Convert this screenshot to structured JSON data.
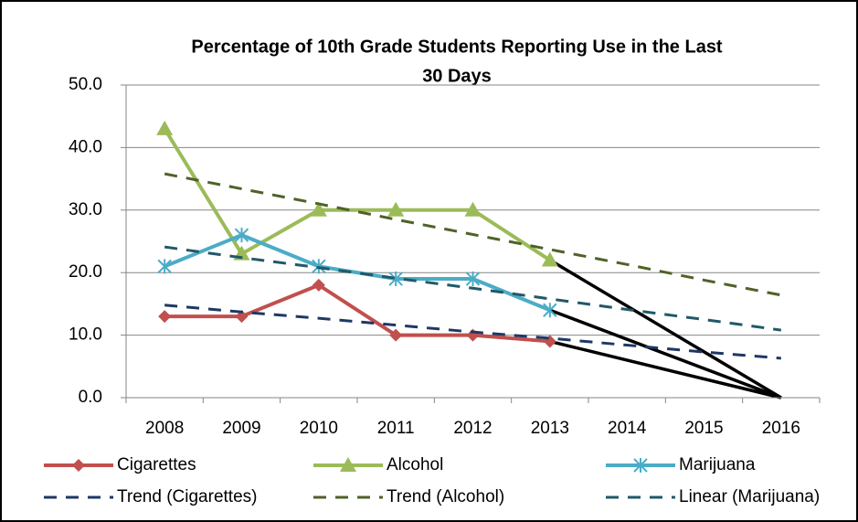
{
  "chart_data": {
    "type": "line",
    "title": [
      "Percentage of 10th Grade Students Reporting Use in the Last",
      "30 Days"
    ],
    "categories": [
      "2008",
      "2009",
      "2010",
      "2011",
      "2012",
      "2013",
      "2014",
      "2015",
      "2016"
    ],
    "ylim": [
      0,
      50
    ],
    "yticks": [
      {
        "value": 0,
        "label": "0.0"
      },
      {
        "value": 10,
        "label": "10.0"
      },
      {
        "value": 20,
        "label": "20.0"
      },
      {
        "value": 30,
        "label": "30.0"
      },
      {
        "value": 40,
        "label": "40.0"
      },
      {
        "value": 50,
        "label": "50.0"
      }
    ],
    "grid": true,
    "legend": "bottom",
    "series": [
      {
        "name": "Cigarettes",
        "color": "#c0504d",
        "marker": "diamond",
        "values": [
          13,
          13,
          18,
          10,
          10,
          9,
          null,
          null,
          null
        ],
        "extension_color": "#000000",
        "extension_values": [
          null,
          null,
          null,
          null,
          null,
          null,
          null,
          null,
          0
        ]
      },
      {
        "name": "Alcohol",
        "color": "#9bbb59",
        "marker": "triangle",
        "values": [
          43,
          23,
          30,
          30,
          30,
          22,
          null,
          null,
          null
        ],
        "extension_color": "#000000",
        "extension_values": [
          null,
          null,
          null,
          null,
          null,
          null,
          null,
          null,
          0
        ]
      },
      {
        "name": "Marijuana",
        "color": "#4bacc6",
        "marker": "star",
        "values": [
          21,
          26,
          21,
          19,
          19,
          14,
          null,
          null,
          null
        ],
        "extension_color": "#000000",
        "extension_values": [
          null,
          null,
          null,
          null,
          null,
          null,
          null,
          null,
          0
        ]
      },
      {
        "name": "Trend (Cigarettes)",
        "color": "#1f3864",
        "dashed": true,
        "values": [
          14.8,
          13.7,
          12.7,
          11.6,
          10.5,
          9.5,
          8.4,
          7.3,
          6.3
        ]
      },
      {
        "name": "Trend (Alcohol)",
        "color": "#4f6228",
        "dashed": true,
        "values": [
          35.8,
          33.4,
          31.0,
          28.5,
          26.1,
          23.7,
          21.3,
          18.8,
          16.4
        ]
      },
      {
        "name": "Linear (Marijuana)",
        "color": "#215968",
        "dashed": true,
        "values": [
          24.1,
          22.4,
          20.8,
          19.1,
          17.5,
          15.8,
          14.1,
          12.5,
          10.8
        ]
      }
    ]
  }
}
